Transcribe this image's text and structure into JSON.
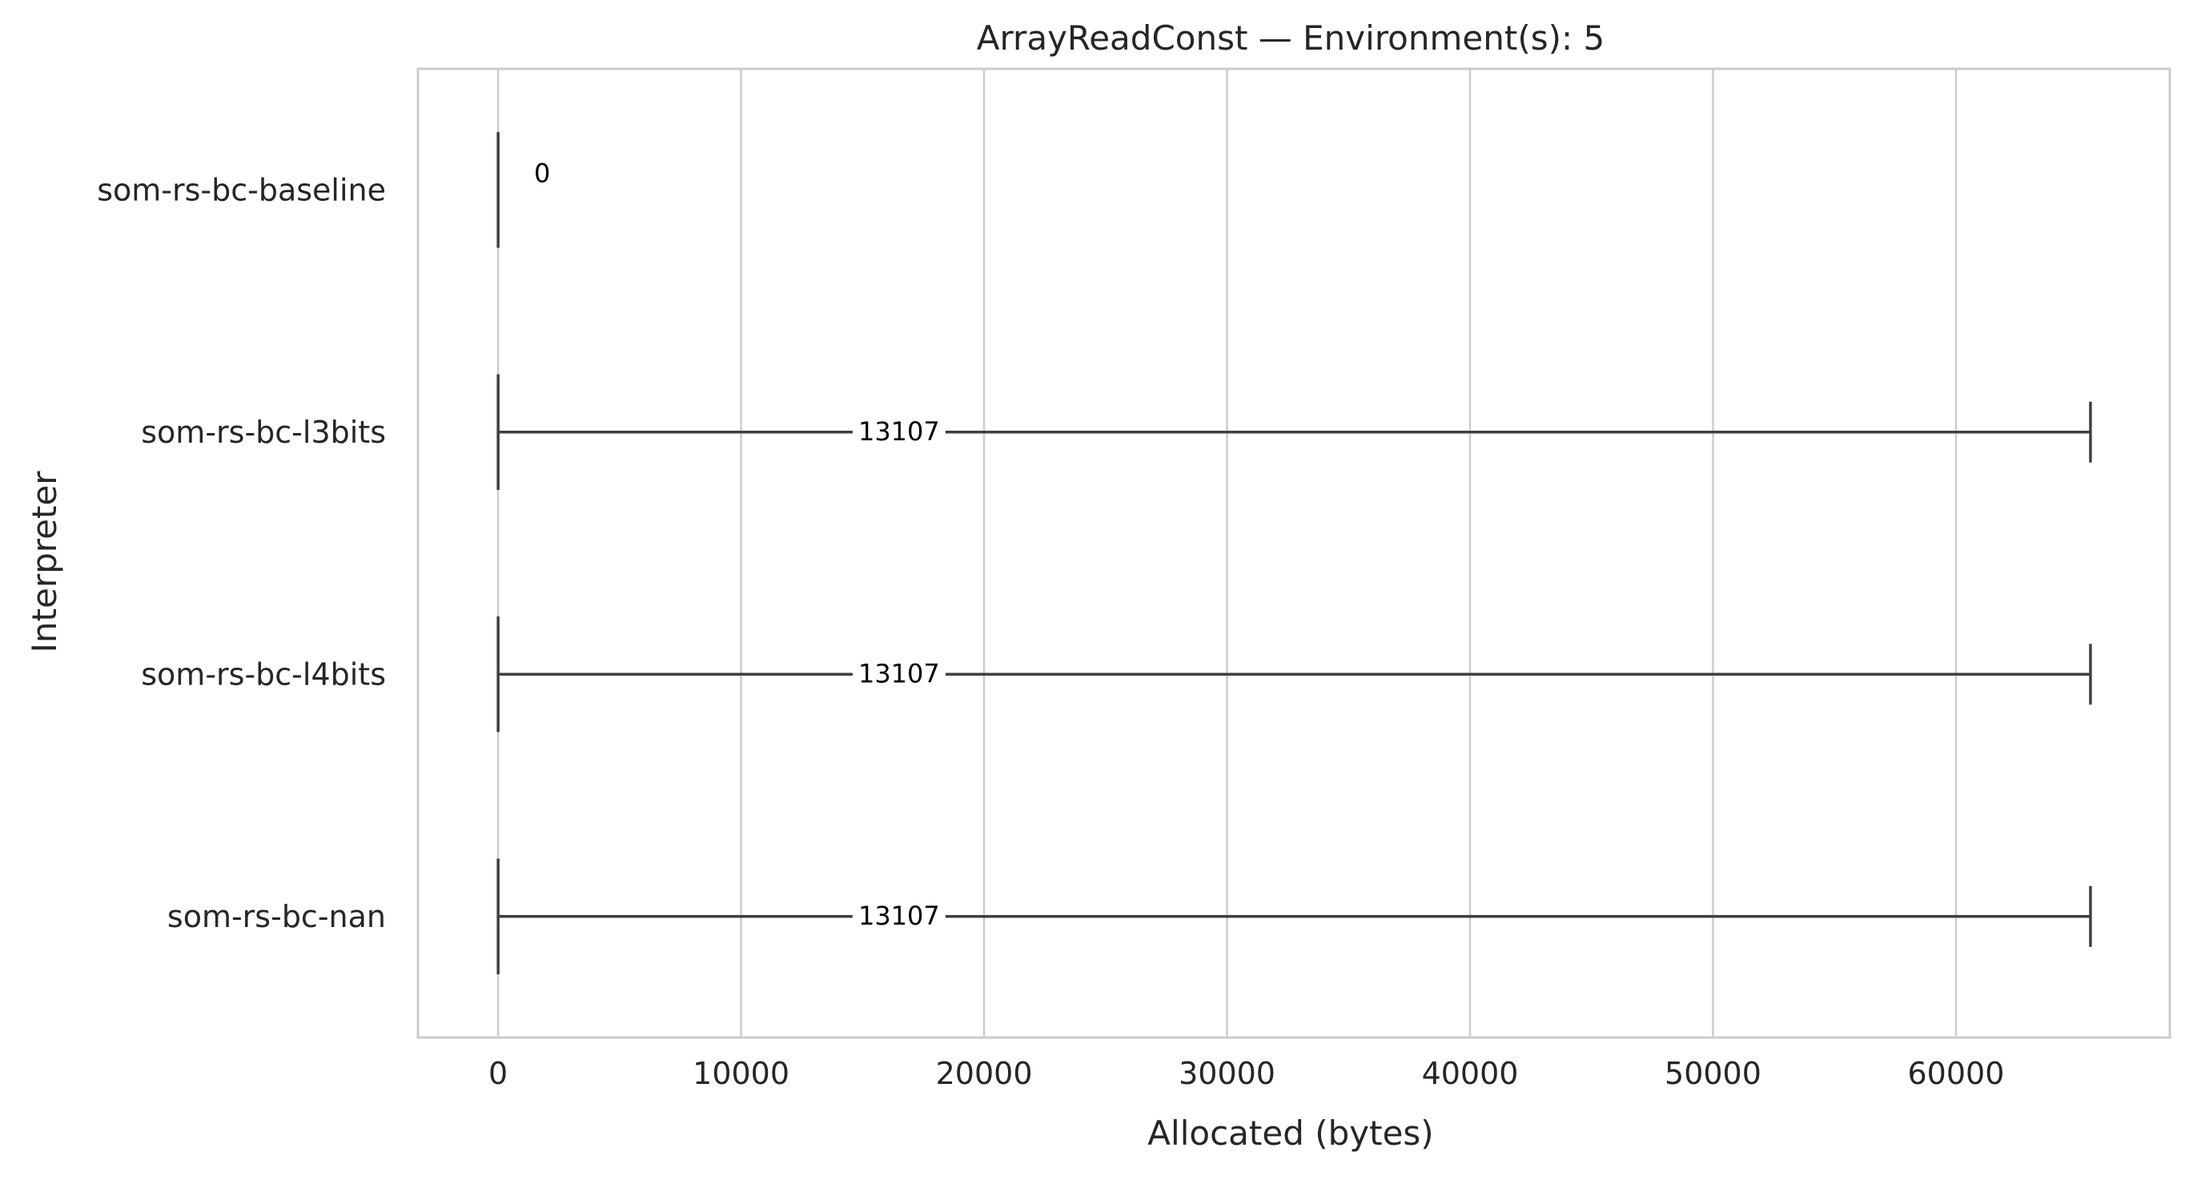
{
  "chart_data": {
    "type": "box",
    "orientation": "horizontal",
    "title": "ArrayReadConst — Environment(s): 5",
    "xlabel": "Allocated (bytes)",
    "ylabel": "Interpreter",
    "xlim": [
      -3300,
      68800
    ],
    "xticks": [
      0,
      10000,
      20000,
      30000,
      40000,
      50000,
      60000
    ],
    "xtick_labels": [
      "0",
      "10000",
      "20000",
      "30000",
      "40000",
      "50000",
      "60000"
    ],
    "grid": "x-major",
    "categories": [
      "som-rs-bc-baseline",
      "som-rs-bc-l3bits",
      "som-rs-bc-l4bits",
      "som-rs-bc-nan"
    ],
    "boxes": [
      {
        "category": "som-rs-bc-baseline",
        "whisker_low": 0,
        "q1": 0,
        "median": 0,
        "q3": 0,
        "whisker_high": 0,
        "label": "0"
      },
      {
        "category": "som-rs-bc-l3bits",
        "whisker_low": 0,
        "q1": 0,
        "median": 0,
        "q3": 0,
        "whisker_high": 65536,
        "label": "13107"
      },
      {
        "category": "som-rs-bc-l4bits",
        "whisker_low": 0,
        "q1": 0,
        "median": 0,
        "q3": 0,
        "whisker_high": 65536,
        "label": "13107"
      },
      {
        "category": "som-rs-bc-nan",
        "whisker_low": 0,
        "q1": 0,
        "median": 0,
        "q3": 0,
        "whisker_high": 65536,
        "label": "13107"
      }
    ],
    "colors": {
      "box_line": "#404040",
      "grid": "#cccccc",
      "frame": "#cccccc",
      "text": "#262626",
      "label_text": "#000000"
    }
  }
}
